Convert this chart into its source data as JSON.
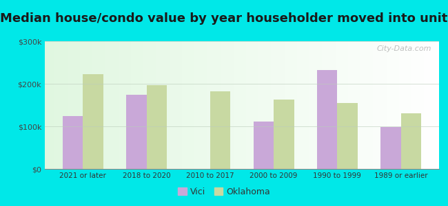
{
  "title": "Median house/condo value by year householder moved into unit",
  "categories": [
    "2021 or later",
    "2018 to 2020",
    "2010 to 2017",
    "2000 to 2009",
    "1990 to 1999",
    "1989 or earlier"
  ],
  "vici_values": [
    125000,
    175000,
    0,
    112000,
    232000,
    98000
  ],
  "oklahoma_values": [
    222000,
    197000,
    183000,
    163000,
    155000,
    130000
  ],
  "vici_color": "#c9a8d8",
  "oklahoma_color": "#c8d9a2",
  "outer_background": "#00e8e8",
  "ylim": [
    0,
    300000
  ],
  "yticks": [
    0,
    100000,
    200000,
    300000
  ],
  "ytick_labels": [
    "$0",
    "$100k",
    "$200k",
    "$300k"
  ],
  "watermark": "City-Data.com",
  "legend_labels": [
    "Vici",
    "Oklahoma"
  ],
  "title_fontsize": 13,
  "bar_width": 0.32
}
